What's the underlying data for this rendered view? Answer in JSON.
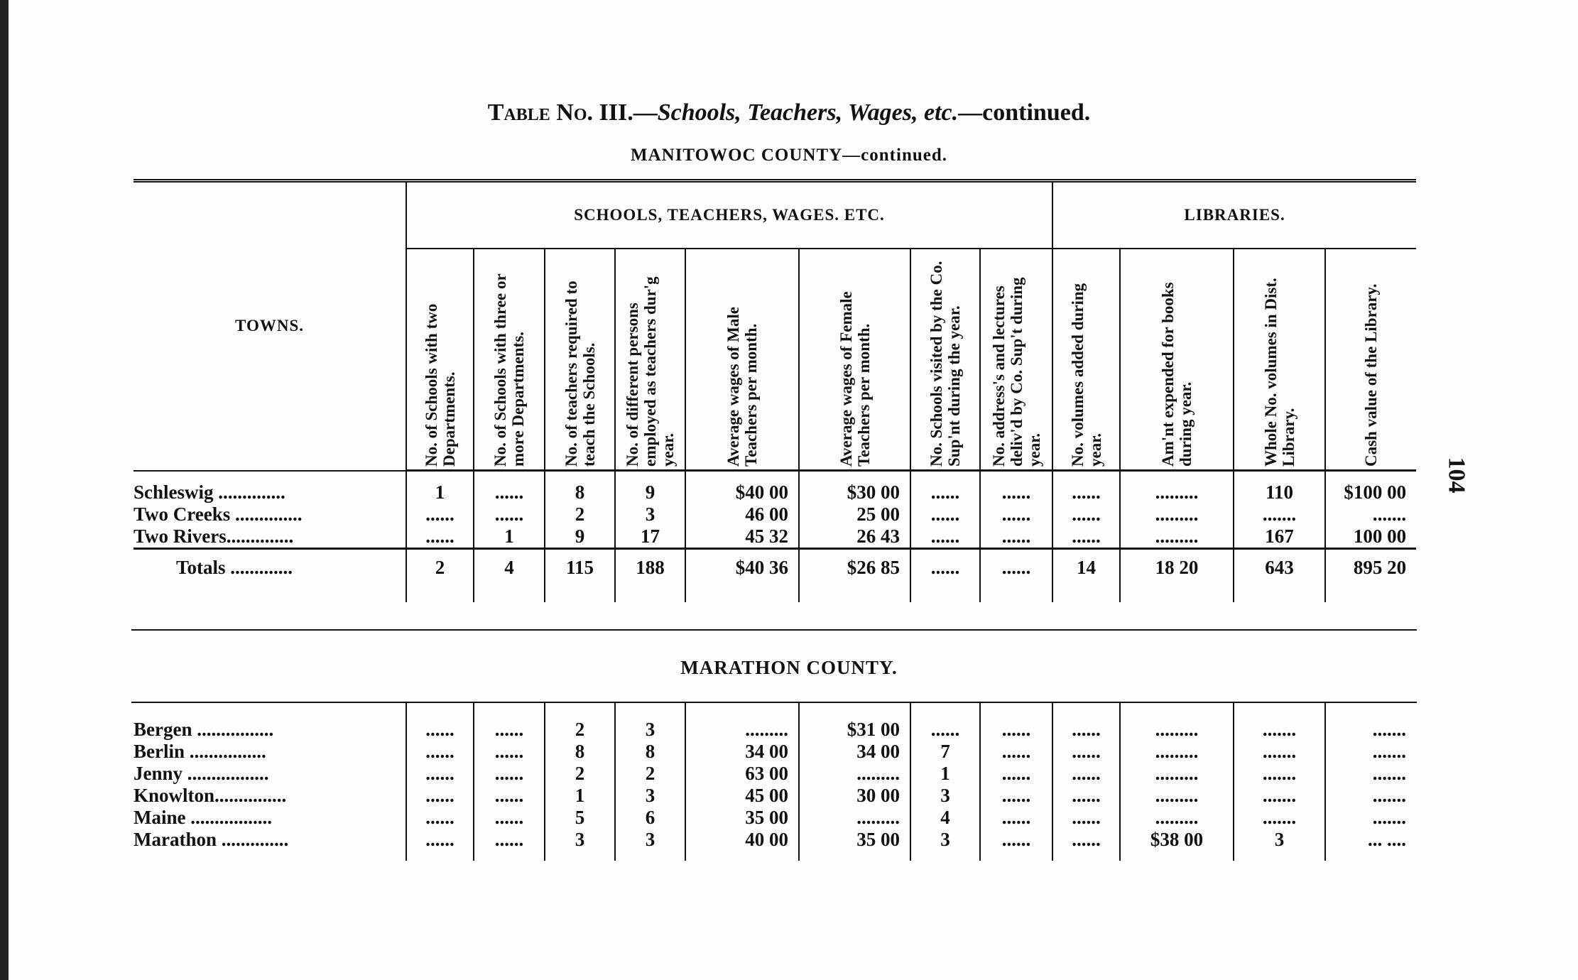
{
  "title": {
    "prefix": "Table No. III.—",
    "italic": "Schools, Teachers, Wages, etc.",
    "suffix": "—continued."
  },
  "subtitle": "MANITOWOC COUNTY—continued.",
  "page_number": "104",
  "group_headers": {
    "towns": "TOWNS.",
    "schools": "SCHOOLS, TEACHERS, WAGES. ETC.",
    "libraries": "LIBRARIES."
  },
  "column_headers": [
    "No. of Schools with two Departments.",
    "No. of Schools with three or more Departments.",
    "No. of teachers required to teach the Schools.",
    "No. of different persons employed as teachers dur'g year.",
    "Average wages of Male Teachers per month.",
    "Average wages of Female Teachers per month.",
    "No. Schools visited by the Co. Sup'nt during the year.",
    "No. address's and lectures deliv'd by Co. Sup't during year.",
    "No. volumes added during year.",
    "Am'nt expended for books during year.",
    "Whole No. volumes in Dist. Library.",
    "Cash value of the Library."
  ],
  "manitowoc_rows": [
    {
      "town": "Schleswig ..............",
      "cells": [
        "1",
        "......",
        "8",
        "9",
        "$40 00",
        "$30 00",
        "......",
        "......",
        "......",
        ".........",
        "110",
        "$100 00"
      ]
    },
    {
      "town": "Two Creeks ..............",
      "cells": [
        "......",
        "......",
        "2",
        "3",
        "46 00",
        "25 00",
        "......",
        "......",
        "......",
        ".........",
        ".......",
        "......."
      ]
    },
    {
      "town": "Two Rivers..............",
      "cells": [
        "......",
        "1",
        "9",
        "17",
        "45 32",
        "26 43",
        "......",
        "......",
        "......",
        ".........",
        "167",
        "100 00"
      ]
    }
  ],
  "manitowoc_totals": {
    "town": "Totals .............",
    "cells": [
      "2",
      "4",
      "115",
      "188",
      "$40 36",
      "$26 85",
      "......",
      "......",
      "14",
      "18 20",
      "643",
      "895 20"
    ]
  },
  "county2_title": "MARATHON  COUNTY.",
  "marathon_rows": [
    {
      "town": "Bergen ................",
      "cells": [
        "......",
        "......",
        "2",
        "3",
        ".........",
        "$31 00",
        "......",
        "......",
        "......",
        ".........",
        ".......",
        "......."
      ]
    },
    {
      "town": "Berlin ................",
      "cells": [
        "......",
        "......",
        "8",
        "8",
        "34 00",
        "34 00",
        "7",
        "......",
        "......",
        ".........",
        ".......",
        "......."
      ]
    },
    {
      "town": "Jenny .................",
      "cells": [
        "......",
        "......",
        "2",
        "2",
        "63 00",
        ".........",
        "1",
        "......",
        "......",
        ".........",
        ".......",
        "......."
      ]
    },
    {
      "town": "Knowlton...............",
      "cells": [
        "......",
        "......",
        "1",
        "3",
        "45 00",
        "30 00",
        "3",
        "......",
        "......",
        ".........",
        ".......",
        "......."
      ]
    },
    {
      "town": "Maine .................",
      "cells": [
        "......",
        "......",
        "5",
        "6",
        "35 00",
        ".........",
        "4",
        "......",
        "......",
        ".........",
        ".......",
        "......."
      ]
    },
    {
      "town": "Marathon ..............",
      "cells": [
        "......",
        "......",
        "3",
        "3",
        "40 00",
        "35 00",
        "3",
        "......",
        "......",
        "$38 00",
        "3",
        "... ...."
      ]
    }
  ]
}
